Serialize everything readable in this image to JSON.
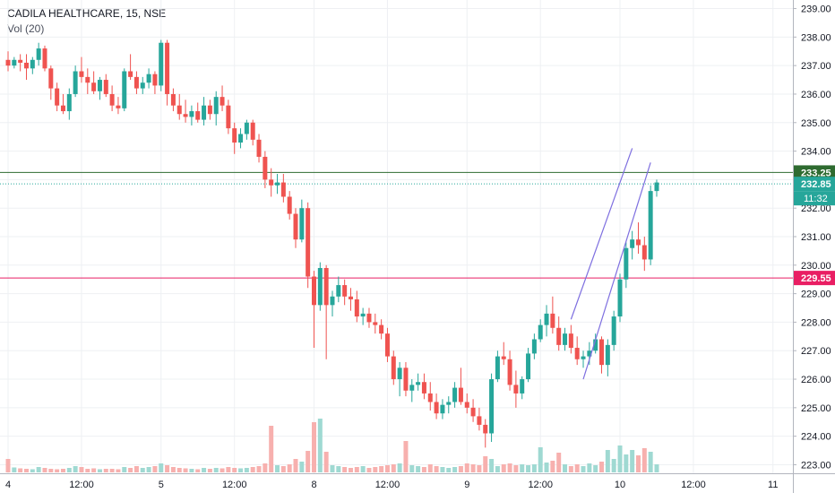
{
  "header": {
    "symbol_line": "CADILA HEALTHCARE, 15, NSE",
    "volume_label": "Vol (20)"
  },
  "colors": {
    "up": "#26a69a",
    "down": "#ef5350",
    "up_volume": "#9fd9d2",
    "down_volume": "#f7b0ae",
    "grid": "#eef0f3",
    "axis_text": "#131722",
    "green_line": "#2e6b30",
    "pink_line": "#e91e63",
    "channel": "#7e6fe0",
    "price_label": "#26a69a"
  },
  "chart_data": {
    "type": "candlestick",
    "interval": "15",
    "exchange": "NSE",
    "y_axis": {
      "range": [
        222.7,
        239.3
      ],
      "ticks": [
        "223.00",
        "224.00",
        "225.00",
        "226.00",
        "227.00",
        "228.00",
        "229.00",
        "230.00",
        "231.00",
        "232.00",
        "233.00",
        "234.00",
        "235.00",
        "236.00",
        "237.00",
        "238.00",
        "239.00"
      ]
    },
    "x_axis": {
      "tick_labels": [
        {
          "bar": 0,
          "label": "4"
        },
        {
          "bar": 12,
          "label": "12:00"
        },
        {
          "bar": 25,
          "label": "5"
        },
        {
          "bar": 37,
          "label": "12:00"
        },
        {
          "bar": 50,
          "label": "8"
        },
        {
          "bar": 62,
          "label": "12:00"
        },
        {
          "bar": 75,
          "label": "9"
        },
        {
          "bar": 87,
          "label": "12:00"
        },
        {
          "bar": 100,
          "label": "10"
        },
        {
          "bar": 112,
          "label": "12:00"
        },
        {
          "bar": 125,
          "label": "11"
        }
      ],
      "bar_slots": 131
    },
    "horizontal_lines": [
      {
        "value": 233.25,
        "style": "solid",
        "color": "#2e6b30",
        "label": "233.25"
      },
      {
        "value": 229.55,
        "style": "solid",
        "color": "#e91e63",
        "label": "229.55"
      },
      {
        "value": 232.85,
        "style": "dotted",
        "color": "#26a69a",
        "label": "232.85",
        "countdown": "11:32"
      }
    ],
    "channel_lines": [
      {
        "from": [
          92,
          228.1
        ],
        "to": [
          102,
          234.1
        ]
      },
      {
        "from": [
          94,
          226.0
        ],
        "to": [
          105,
          233.6
        ]
      }
    ],
    "volume_max": 6000,
    "candles": [
      [
        237.2,
        237.5,
        236.8,
        237.0,
        1500
      ],
      [
        237.0,
        237.3,
        236.9,
        237.2,
        550
      ],
      [
        237.2,
        237.4,
        236.8,
        237.1,
        450
      ],
      [
        237.1,
        237.4,
        236.5,
        236.9,
        400
      ],
      [
        236.9,
        237.3,
        236.7,
        237.2,
        350
      ],
      [
        237.2,
        237.8,
        237.0,
        237.6,
        600
      ],
      [
        237.6,
        237.7,
        236.8,
        236.9,
        500
      ],
      [
        236.9,
        237.0,
        235.8,
        236.2,
        400
      ],
      [
        236.2,
        236.4,
        235.4,
        235.6,
        350
      ],
      [
        235.6,
        236.0,
        235.3,
        235.4,
        400
      ],
      [
        235.4,
        236.2,
        235.1,
        236.0,
        500
      ],
      [
        236.0,
        237.0,
        235.9,
        236.8,
        700
      ],
      [
        236.8,
        237.3,
        236.4,
        236.6,
        600
      ],
      [
        236.6,
        236.9,
        236.0,
        236.4,
        400
      ],
      [
        236.4,
        236.8,
        236.0,
        236.1,
        450
      ],
      [
        236.1,
        236.6,
        235.8,
        236.5,
        350
      ],
      [
        236.5,
        236.7,
        235.9,
        236.0,
        400
      ],
      [
        236.0,
        236.3,
        235.4,
        235.6,
        400
      ],
      [
        235.6,
        235.9,
        235.3,
        235.5,
        350
      ],
      [
        235.5,
        236.9,
        235.4,
        236.8,
        600
      ],
      [
        236.8,
        237.4,
        236.5,
        236.6,
        500
      ],
      [
        236.6,
        236.8,
        236.0,
        236.2,
        700
      ],
      [
        236.2,
        236.6,
        236.0,
        236.4,
        500
      ],
      [
        236.4,
        236.9,
        236.2,
        236.7,
        600
      ],
      [
        236.7,
        236.8,
        236.0,
        236.3,
        700
      ],
      [
        236.3,
        237.9,
        236.1,
        237.8,
        1000
      ],
      [
        237.8,
        237.9,
        235.6,
        236.0,
        800
      ],
      [
        236.0,
        236.2,
        235.4,
        235.6,
        600
      ],
      [
        235.6,
        236.0,
        235.1,
        235.3,
        500
      ],
      [
        235.3,
        235.8,
        235.0,
        235.2,
        450
      ],
      [
        235.2,
        235.6,
        234.9,
        235.4,
        400
      ],
      [
        235.4,
        235.7,
        235.0,
        235.1,
        350
      ],
      [
        235.1,
        235.9,
        234.9,
        235.6,
        500
      ],
      [
        235.6,
        235.8,
        235.1,
        235.3,
        400
      ],
      [
        235.3,
        236.1,
        234.9,
        235.9,
        500
      ],
      [
        235.9,
        236.3,
        235.4,
        235.6,
        450
      ],
      [
        235.6,
        235.8,
        234.6,
        234.8,
        600
      ],
      [
        234.8,
        235.0,
        233.9,
        234.3,
        500
      ],
      [
        234.3,
        234.8,
        234.1,
        234.6,
        450
      ],
      [
        234.6,
        235.1,
        234.4,
        235.0,
        500
      ],
      [
        235.0,
        235.1,
        234.2,
        234.4,
        600
      ],
      [
        234.4,
        234.6,
        233.6,
        233.8,
        700
      ],
      [
        233.8,
        234.0,
        232.7,
        233.0,
        1000
      ],
      [
        233.0,
        233.4,
        232.4,
        232.8,
        5200
      ],
      [
        232.8,
        233.2,
        232.5,
        232.9,
        800
      ],
      [
        232.9,
        233.2,
        232.2,
        232.4,
        700
      ],
      [
        232.4,
        232.6,
        231.6,
        231.8,
        900
      ],
      [
        231.8,
        232.0,
        230.6,
        230.9,
        1500
      ],
      [
        230.9,
        232.3,
        230.8,
        232.0,
        1200
      ],
      [
        232.0,
        232.2,
        229.2,
        229.6,
        2400
      ],
      [
        229.6,
        229.8,
        227.1,
        228.6,
        5600
      ],
      [
        228.6,
        230.1,
        228.4,
        229.9,
        6000
      ],
      [
        229.9,
        230.0,
        226.7,
        228.6,
        2300
      ],
      [
        228.6,
        229.1,
        228.2,
        228.9,
        800
      ],
      [
        228.9,
        229.6,
        228.7,
        229.3,
        700
      ],
      [
        229.3,
        229.5,
        228.6,
        228.9,
        600
      ],
      [
        228.9,
        229.2,
        228.4,
        228.8,
        500
      ],
      [
        228.8,
        229.1,
        228.0,
        228.2,
        600
      ],
      [
        228.2,
        228.5,
        227.9,
        228.3,
        700
      ],
      [
        228.3,
        228.5,
        227.8,
        228.0,
        500
      ],
      [
        228.0,
        228.3,
        227.6,
        227.9,
        600
      ],
      [
        227.9,
        228.1,
        227.4,
        227.6,
        700
      ],
      [
        227.6,
        227.8,
        226.6,
        226.8,
        800
      ],
      [
        226.8,
        227.0,
        225.8,
        226.0,
        900
      ],
      [
        226.0,
        226.6,
        225.4,
        226.4,
        1000
      ],
      [
        226.4,
        226.6,
        225.4,
        225.6,
        3500
      ],
      [
        225.6,
        226.0,
        225.2,
        225.8,
        800
      ],
      [
        225.8,
        226.2,
        225.6,
        225.9,
        700
      ],
      [
        225.9,
        226.2,
        225.3,
        225.5,
        600
      ],
      [
        225.5,
        225.9,
        224.9,
        225.2,
        900
      ],
      [
        225.2,
        225.5,
        224.6,
        224.8,
        700
      ],
      [
        224.8,
        225.3,
        224.6,
        225.1,
        600
      ],
      [
        225.1,
        225.4,
        224.8,
        225.2,
        500
      ],
      [
        225.2,
        225.9,
        225.0,
        225.7,
        600
      ],
      [
        225.7,
        226.4,
        225.1,
        225.2,
        700
      ],
      [
        225.2,
        225.5,
        224.8,
        225.0,
        1000
      ],
      [
        225.0,
        225.3,
        224.5,
        224.7,
        900
      ],
      [
        224.7,
        225.0,
        224.2,
        224.4,
        800
      ],
      [
        224.4,
        224.6,
        223.6,
        224.1,
        1800
      ],
      [
        224.1,
        226.2,
        223.8,
        226.0,
        1500
      ],
      [
        226.0,
        227.0,
        225.9,
        226.8,
        700
      ],
      [
        226.8,
        227.3,
        226.5,
        226.7,
        900
      ],
      [
        226.7,
        227.0,
        225.6,
        225.8,
        1000
      ],
      [
        225.8,
        226.3,
        225.0,
        225.5,
        800
      ],
      [
        225.5,
        226.1,
        225.3,
        226.0,
        900
      ],
      [
        226.0,
        227.1,
        225.9,
        226.9,
        800
      ],
      [
        226.9,
        227.6,
        226.7,
        227.4,
        900
      ],
      [
        227.4,
        228.1,
        227.3,
        227.9,
        2800
      ],
      [
        227.9,
        228.6,
        227.5,
        228.3,
        1100
      ],
      [
        228.3,
        228.9,
        227.6,
        227.8,
        1300
      ],
      [
        227.8,
        228.2,
        227.0,
        227.2,
        2200
      ],
      [
        227.2,
        227.8,
        227.0,
        227.6,
        900
      ],
      [
        227.6,
        227.9,
        226.9,
        227.1,
        700
      ],
      [
        227.1,
        227.5,
        226.5,
        226.7,
        900
      ],
      [
        226.7,
        227.0,
        226.4,
        226.8,
        700
      ],
      [
        226.8,
        227.3,
        226.5,
        227.0,
        1000
      ],
      [
        227.0,
        227.6,
        226.9,
        227.4,
        800
      ],
      [
        227.4,
        227.5,
        226.2,
        226.5,
        1200
      ],
      [
        226.5,
        227.4,
        226.1,
        227.2,
        2500
      ],
      [
        227.2,
        228.4,
        227.0,
        228.2,
        1500
      ],
      [
        228.2,
        229.7,
        228.0,
        229.5,
        3000
      ],
      [
        229.5,
        230.8,
        229.2,
        230.6,
        2000
      ],
      [
        230.6,
        231.2,
        230.2,
        230.9,
        2500
      ],
      [
        230.9,
        231.5,
        230.4,
        230.7,
        1900
      ],
      [
        230.7,
        231.0,
        229.8,
        230.2,
        2700
      ],
      [
        230.2,
        232.8,
        230.0,
        232.6,
        2300
      ],
      [
        232.6,
        233.0,
        232.4,
        232.9,
        900
      ]
    ]
  }
}
